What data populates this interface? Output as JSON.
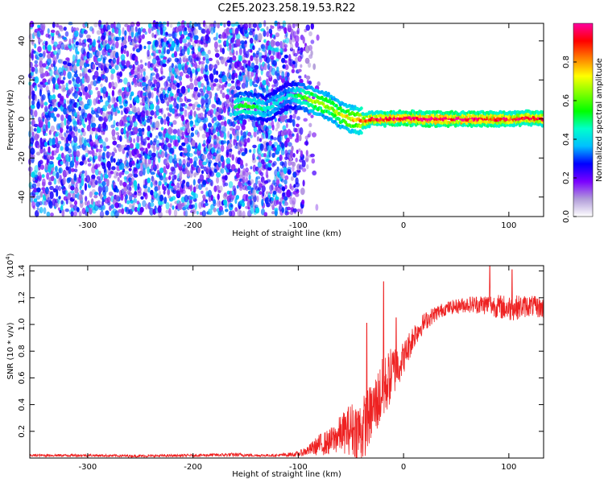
{
  "title": "C2E5.2023.258.19.53.R22",
  "chart_data": [
    {
      "type": "heatmap",
      "xlabel": "Height of straight line (km)",
      "ylabel": "Frequency (Hz)",
      "xlim": [
        -355,
        133
      ],
      "ylim": [
        -50,
        49
      ],
      "x_ticks": [
        -300,
        -200,
        -100,
        0,
        100
      ],
      "y_ticks": [
        -40,
        -20,
        0,
        20,
        40
      ],
      "colorbar": {
        "label": "Normalized spectral amplitude",
        "range": [
          0.0,
          1.0
        ],
        "ticks": [
          "0.0",
          "0.2",
          "0.4",
          "0.6",
          "0.8"
        ],
        "tick_values": [
          0.0,
          0.2,
          0.4,
          0.6,
          0.8
        ],
        "colors": [
          "#ffffff",
          "#b19cd9",
          "#7b00ff",
          "#0000ff",
          "#00bfff",
          "#00ffcc",
          "#00ff00",
          "#7fff00",
          "#ffff00",
          "#ff8000",
          "#ff0000",
          "#ff00a0"
        ]
      },
      "noise_region": {
        "x_start": -355,
        "x_end": -80,
        "freq_spread": 49
      },
      "signal_ridge": [
        {
          "x": -160,
          "freq": 6,
          "amp": 0.45
        },
        {
          "x": -150,
          "freq": 7,
          "amp": 0.5
        },
        {
          "x": -140,
          "freq": 6,
          "amp": 0.45
        },
        {
          "x": -130,
          "freq": 5,
          "amp": 0.35
        },
        {
          "x": -110,
          "freq": 12,
          "amp": 0.3
        },
        {
          "x": -100,
          "freq": 12,
          "amp": 0.45
        },
        {
          "x": -90,
          "freq": 10,
          "amp": 0.6
        },
        {
          "x": -80,
          "freq": 8,
          "amp": 0.65
        },
        {
          "x": -70,
          "freq": 6,
          "amp": 0.6
        },
        {
          "x": -60,
          "freq": 2,
          "amp": 0.65
        },
        {
          "x": -50,
          "freq": 0,
          "amp": 0.7
        },
        {
          "x": -40,
          "freq": -1,
          "amp": 0.85
        },
        {
          "x": -30,
          "freq": 0,
          "amp": 0.9
        },
        {
          "x": -20,
          "freq": 0,
          "amp": 0.95
        },
        {
          "x": 0,
          "freq": 0.5,
          "amp": 1.0
        },
        {
          "x": 20,
          "freq": 0,
          "amp": 1.0
        },
        {
          "x": 40,
          "freq": 0,
          "amp": 1.0
        },
        {
          "x": 60,
          "freq": 0,
          "amp": 1.0
        },
        {
          "x": 80,
          "freq": 0,
          "amp": 0.95
        },
        {
          "x": 100,
          "freq": 0,
          "amp": 0.9
        },
        {
          "x": 120,
          "freq": 0.5,
          "amp": 0.95
        },
        {
          "x": 133,
          "freq": 0,
          "amp": 0.9
        }
      ]
    },
    {
      "type": "line",
      "xlabel": "Height of straight line (km)",
      "ylabel": "SNR (10 * v/v)",
      "y_multiplier": "(x10",
      "y_multiplier_exp": "4",
      "y_multiplier_close": ")",
      "xlim": [
        -355,
        133
      ],
      "ylim": [
        0,
        1.44
      ],
      "x_ticks": [
        -300,
        -200,
        -100,
        0,
        100
      ],
      "y_ticks": [
        0.2,
        0.4,
        0.6,
        0.8,
        1.0,
        1.2,
        1.4
      ],
      "y_tick_labels": [
        "0.2",
        "0.4",
        "0.6",
        "0.8",
        "1.0",
        "1.2",
        "1.4"
      ],
      "color": "#ee2222",
      "series": [
        {
          "x": [
            -355,
            -300,
            -250,
            -200,
            -160,
            -140,
            -120,
            -100,
            -90,
            -80,
            -70,
            -60,
            -50,
            -40,
            -30,
            -20,
            -10,
            0,
            10,
            20,
            30,
            40,
            60,
            80,
            100,
            120,
            133
          ],
          "mean": [
            0.02,
            0.02,
            0.015,
            0.02,
            0.025,
            0.02,
            0.02,
            0.03,
            0.06,
            0.1,
            0.12,
            0.18,
            0.22,
            0.2,
            0.35,
            0.5,
            0.65,
            0.75,
            0.92,
            1.02,
            1.08,
            1.12,
            1.15,
            1.15,
            1.12,
            1.14,
            1.12
          ],
          "amp": [
            0.01,
            0.01,
            0.01,
            0.01,
            0.015,
            0.01,
            0.01,
            0.02,
            0.04,
            0.08,
            0.1,
            0.14,
            0.2,
            0.25,
            0.22,
            0.25,
            0.2,
            0.12,
            0.1,
            0.07,
            0.06,
            0.05,
            0.06,
            0.08,
            0.1,
            0.08,
            0.08
          ],
          "spikes": [
            {
              "x": -108,
              "y": 0.04
            },
            {
              "x": -35,
              "y": 1.01
            },
            {
              "x": -19,
              "y": 1.32
            },
            {
              "x": -7,
              "y": 1.05
            },
            {
              "x": 82,
              "y": 1.44
            },
            {
              "x": 103,
              "y": 1.41
            }
          ]
        }
      ]
    }
  ]
}
